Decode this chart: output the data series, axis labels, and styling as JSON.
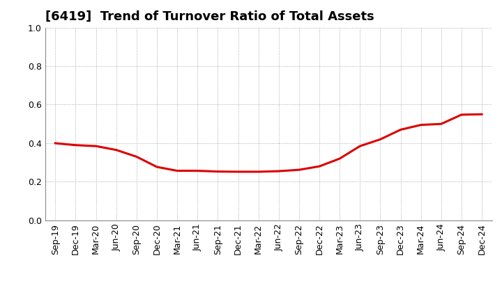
{
  "title": "[6419]  Trend of Turnover Ratio of Total Assets",
  "line_color": "#dd0000",
  "line_width": 2.2,
  "background_color": "#ffffff",
  "grid_color": "#999999",
  "ylim": [
    0.0,
    1.0
  ],
  "yticks": [
    0.0,
    0.2,
    0.4,
    0.6,
    0.8,
    1.0
  ],
  "x_labels": [
    "Sep-19",
    "Dec-19",
    "Mar-20",
    "Jun-20",
    "Sep-20",
    "Dec-20",
    "Mar-21",
    "Jun-21",
    "Sep-21",
    "Dec-21",
    "Mar-22",
    "Jun-22",
    "Sep-22",
    "Dec-22",
    "Mar-23",
    "Jun-23",
    "Sep-23",
    "Dec-23",
    "Mar-24",
    "Jun-24",
    "Sep-24",
    "Dec-24"
  ],
  "values": [
    0.4,
    0.39,
    0.385,
    0.365,
    0.33,
    0.277,
    0.257,
    0.257,
    0.253,
    0.252,
    0.252,
    0.255,
    0.262,
    0.28,
    0.32,
    0.385,
    0.42,
    0.47,
    0.495,
    0.5,
    0.548,
    0.55
  ],
  "title_fontsize": 13,
  "tick_fontsize": 9
}
